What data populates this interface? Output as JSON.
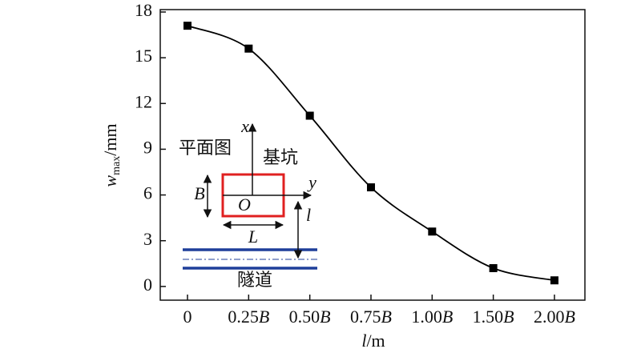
{
  "chart_data": {
    "type": "line",
    "x_label": "l/m",
    "y_label": {
      "symbol": "w",
      "subscript": "max",
      "unit": "/mm"
    },
    "categories": [
      "0",
      "0.25B",
      "0.50B",
      "0.75B",
      "1.00B",
      "1.50B",
      "2.00B"
    ],
    "series": [
      {
        "color": "#000000",
        "values": [
          17.1,
          15.6,
          11.2,
          6.5,
          3.6,
          1.2,
          0.4
        ]
      }
    ],
    "ylim": [
      -0.9,
      18
    ],
    "yticks": [
      0,
      3,
      6,
      9,
      12,
      15,
      18
    ],
    "inset": {
      "plan_label": "平面图",
      "pit_label": "基坑",
      "tunnel_label": "隧道",
      "x_axis": "x",
      "y_axis": "y",
      "origin": "O",
      "width": "B",
      "length": "L",
      "distance": "l"
    }
  }
}
